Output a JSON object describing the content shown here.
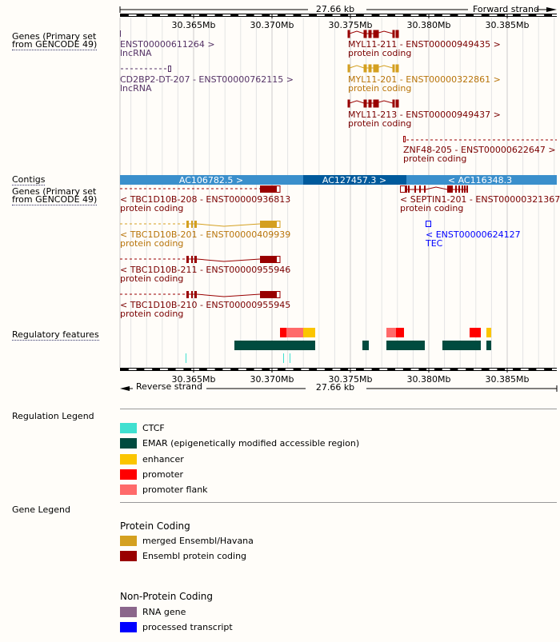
{
  "ruler": {
    "length": "27.66 kb",
    "forward": "Forward strand",
    "reverse": "Reverse strand",
    "ticks": [
      "30.365Mb",
      "30.370Mb",
      "30.375Mb",
      "30.380Mb",
      "30.385Mb"
    ]
  },
  "tracks": {
    "genes_fwd": "Genes (Primary set",
    "genes_fwd2": "from GENCODE 49)",
    "contigs": "Contigs",
    "genes_rev": "Genes (Primary set",
    "genes_rev2": "from GENCODE 49)",
    "regulatory": "Regulatory features"
  },
  "fwd": [
    {
      "name": "ENST00000611264 >",
      "type": "lncRNA"
    },
    {
      "name": "CD2BP2-DT-207 - ENST00000762115 >",
      "type": "lncRNA"
    },
    {
      "name": "MYL11-211 - ENST00000949435 >",
      "type": "protein coding"
    },
    {
      "name": "MYL11-201 - ENST00000322861 >",
      "type": "protein coding"
    },
    {
      "name": "MYL11-213 - ENST00000949437 >",
      "type": "protein coding"
    },
    {
      "name": "ZNF48-205 - ENST00000622647 >",
      "type": "protein coding"
    }
  ],
  "contigs": [
    "AC106782.5 >",
    "AC127457.3 >",
    "< AC116348.3"
  ],
  "rev": [
    {
      "name": "< TBC1D10B-208 - ENST00000936813",
      "type": "protein coding"
    },
    {
      "name": "< SEPTIN1-201 - ENST00000321367",
      "type": "protein coding"
    },
    {
      "name": "< TBC1D10B-201 - ENST00000409939",
      "type": "protein coding"
    },
    {
      "name": "< ENST00000624127",
      "type": "TEC"
    },
    {
      "name": "< TBC1D10B-211 - ENST00000955946",
      "type": "protein coding"
    },
    {
      "name": "< TBC1D10B-210 - ENST00000955945",
      "type": "protein coding"
    }
  ],
  "regulation_legend": {
    "title": "Regulation Legend",
    "items": [
      {
        "label": "CTCF",
        "color": "#40e0d0"
      },
      {
        "label": "EMAR (epigenetically modified accessible region)",
        "color": "#004b3f"
      },
      {
        "label": "enhancer",
        "color": "#fbc500"
      },
      {
        "label": "promoter",
        "color": "#ff0000"
      },
      {
        "label": "promoter flank",
        "color": "#ff6a6a"
      }
    ]
  },
  "gene_legend": {
    "title": "Gene Legend",
    "protein_coding": "Protein Coding",
    "pc_items": [
      {
        "label": "merged Ensembl/Havana",
        "color": "#d4a020"
      },
      {
        "label": "Ensembl protein coding",
        "color": "#990000"
      }
    ],
    "non_protein_coding": "Non-Protein Coding",
    "npc_items": [
      {
        "label": "RNA gene",
        "color": "#8b668b"
      },
      {
        "label": "processed transcript",
        "color": "#0000ff"
      }
    ]
  }
}
